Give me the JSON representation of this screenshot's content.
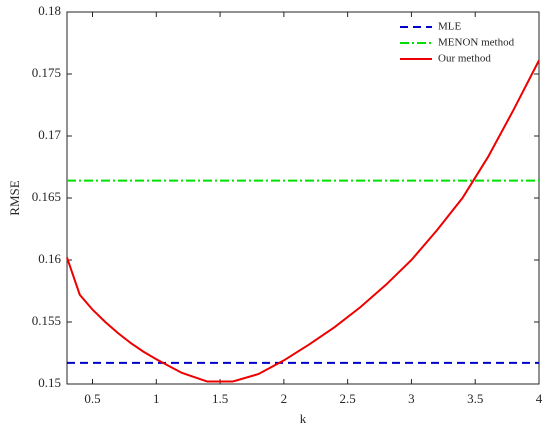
{
  "chart_data": {
    "type": "line",
    "x_label": "k",
    "y_label": "RMSE",
    "xlim": [
      0.3,
      4
    ],
    "ylim": [
      0.15,
      0.18
    ],
    "xticks": [
      0.5,
      1,
      1.5,
      2,
      2.5,
      3,
      3.5,
      4
    ],
    "yticks": [
      0.15,
      0.155,
      0.16,
      0.165,
      0.17,
      0.175,
      0.18
    ],
    "legend": "upper right",
    "series": [
      {
        "name": "MLE",
        "color": "#0000cc",
        "linestyle": "dashed",
        "x": [
          0.3,
          4
        ],
        "values": [
          0.1517,
          0.1517
        ]
      },
      {
        "name": "MENON method",
        "color": "#00e000",
        "linestyle": "dashdot",
        "x": [
          0.3,
          4
        ],
        "values": [
          0.1664,
          0.1664
        ]
      },
      {
        "name": "Our method",
        "color": "#ee0000",
        "linestyle": "solid",
        "x": [
          0.3,
          0.4,
          0.5,
          0.6,
          0.7,
          0.8,
          0.9,
          1.0,
          1.2,
          1.4,
          1.6,
          1.8,
          2.0,
          2.2,
          2.4,
          2.6,
          2.8,
          3.0,
          3.2,
          3.4,
          3.6,
          3.8,
          4.0
        ],
        "values": [
          0.1602,
          0.1572,
          0.156,
          0.155,
          0.1541,
          0.1533,
          0.1526,
          0.152,
          0.1509,
          0.1502,
          0.1502,
          0.1508,
          0.1519,
          0.1532,
          0.1546,
          0.1562,
          0.158,
          0.16,
          0.1624,
          0.165,
          0.1683,
          0.1721,
          0.1761
        ]
      }
    ]
  }
}
